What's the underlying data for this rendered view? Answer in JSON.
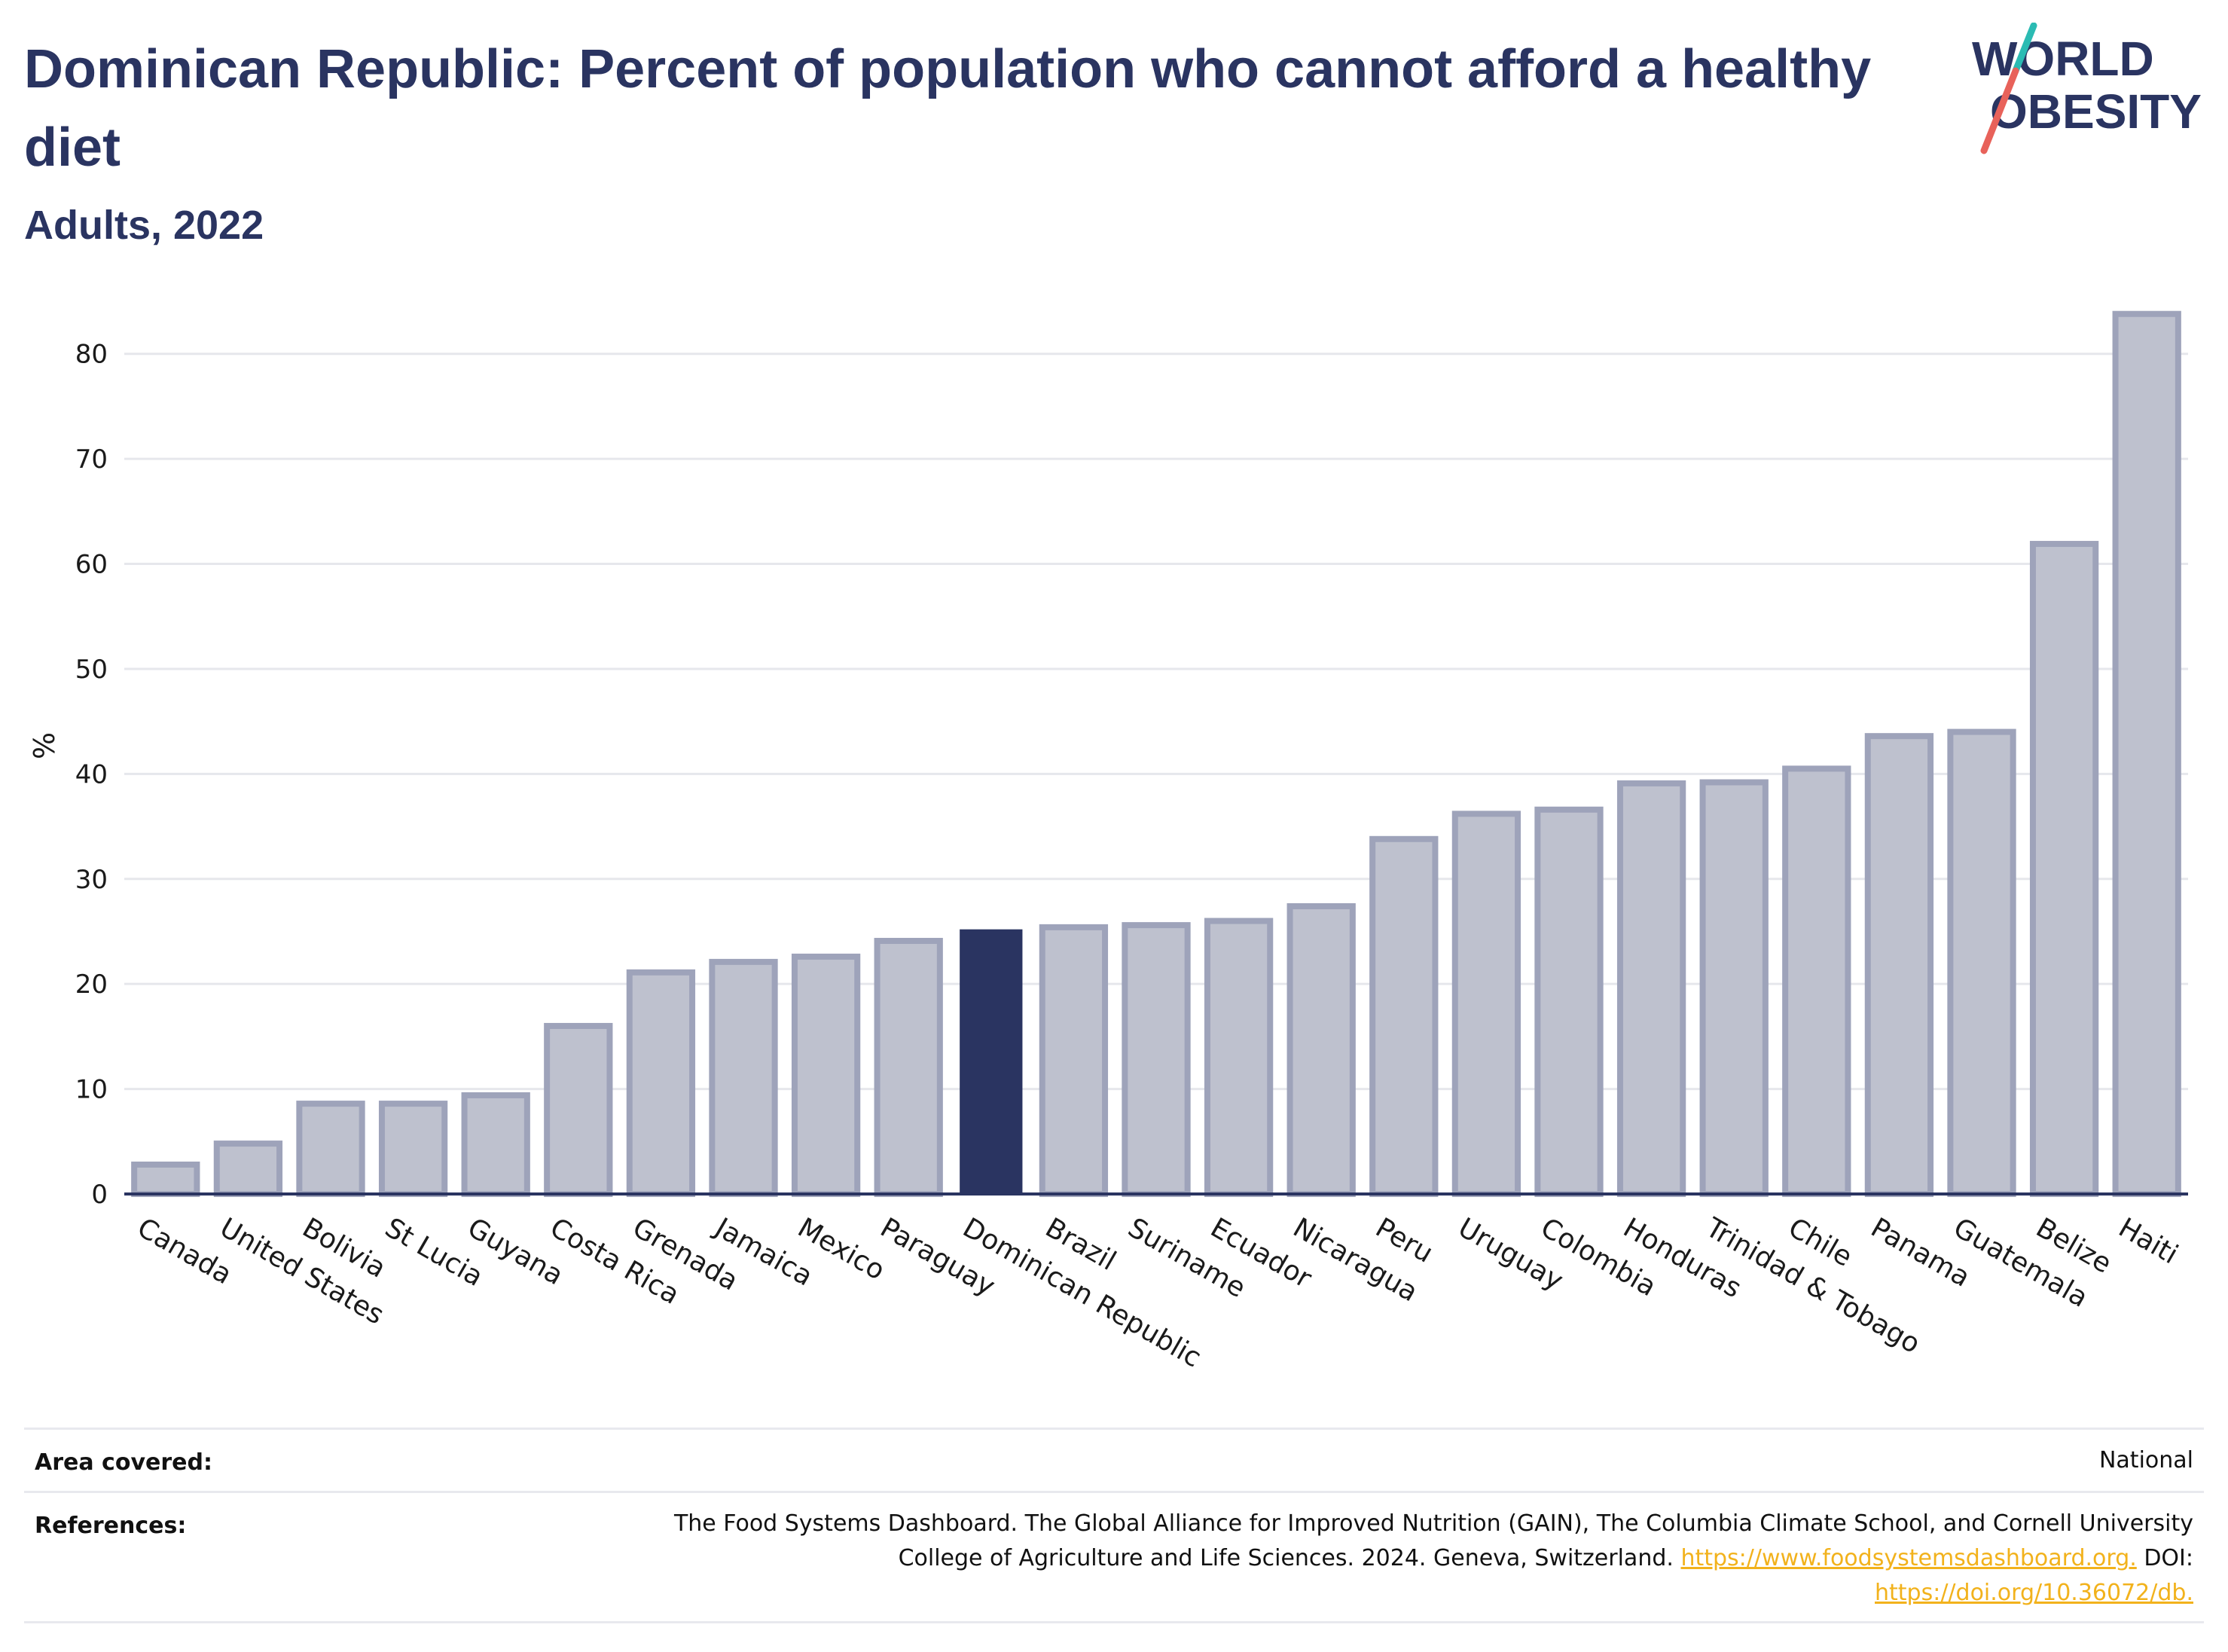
{
  "header": {
    "title": "Dominican Republic: Percent of population who cannot afford a healthy diet",
    "subtitle": "Adults, 2022"
  },
  "logo": {
    "line1": "WORLD",
    "line2": "OBESITY",
    "colors": {
      "text": "#2a3461",
      "slash_teal": "#2bbbb3",
      "slash_red": "#e8625a"
    }
  },
  "colors": {
    "bar_fill": "#bec1ce",
    "bar_stroke": "#9ea3ba",
    "highlight": "#2a3461",
    "grid": "#e6e7ec",
    "axis": "#2a3461"
  },
  "chart_data": {
    "type": "bar",
    "title": "Dominican Republic: Percent of population who cannot afford a healthy diet",
    "subtitle": "Adults, 2022",
    "xlabel": "",
    "ylabel": "%",
    "ylim": [
      0,
      85
    ],
    "yticks": [
      0,
      10,
      20,
      30,
      40,
      50,
      60,
      70,
      80
    ],
    "grid": true,
    "highlight": "Dominican Republic",
    "categories": [
      "Canada",
      "United States",
      "Bolivia",
      "St Lucia",
      "Guyana",
      "Costa Rica",
      "Grenada",
      "Jamaica",
      "Mexico",
      "Paraguay",
      "Dominican Republic",
      "Brazil",
      "Suriname",
      "Ecuador",
      "Nicaragua",
      "Peru",
      "Uruguay",
      "Colombia",
      "Honduras",
      "Trinidad & Tobago",
      "Chile",
      "Panama",
      "Guatemala",
      "Belize",
      "Haiti"
    ],
    "values": [
      2.8,
      4.8,
      8.6,
      8.6,
      9.4,
      16.0,
      21.1,
      22.1,
      22.6,
      24.1,
      25.2,
      25.4,
      25.6,
      26.0,
      27.4,
      33.8,
      36.2,
      36.6,
      39.1,
      39.2,
      40.5,
      43.6,
      44.0,
      61.9,
      83.8
    ]
  },
  "info": {
    "area_label": "Area covered:",
    "area_value": "National",
    "references_label": "References:",
    "references_text_1": "The Food Systems Dashboard. The Global Alliance for Improved Nutrition (GAIN), The Columbia Climate School, and Cornell University",
    "references_text_2": "College of Agriculture and Life Sciences. 2024. Geneva, Switzerland.",
    "references_link_1": "https://www.foodsystemsdashboard.org.",
    "references_doi": "DOI:",
    "references_link_2": "https://doi.org/10.36072/db."
  }
}
